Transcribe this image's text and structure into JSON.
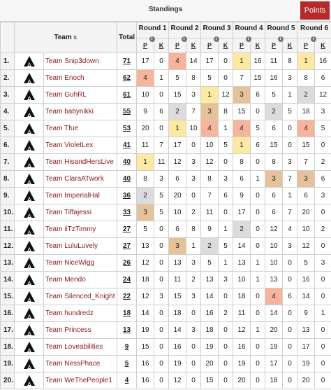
{
  "header": {
    "title": "Standings",
    "points_button": "Points"
  },
  "columns": {
    "team": "Team",
    "total": "Total",
    "p": "P",
    "k": "K"
  },
  "rounds": [
    "Round 1",
    "Round 2",
    "Round 3",
    "Round 4",
    "Round 5",
    "Round 6"
  ],
  "highlight_colors": {
    "gold": "#fde9a2",
    "orange": "#f6b49c",
    "tan": "#e6c29a",
    "gray": "#dcdcdc"
  },
  "rows": [
    {
      "rank": "1.",
      "team": "Team Snip3down",
      "total": "71",
      "cells": [
        "17",
        "0",
        "4",
        "14",
        "17",
        "0",
        "1",
        "16",
        "11",
        "8",
        "1",
        "16"
      ]
    },
    {
      "rank": "2.",
      "team": "Team Enoch",
      "total": "62",
      "cells": [
        "4",
        "1",
        "5",
        "8",
        "5",
        "0",
        "7",
        "15",
        "16",
        "3",
        "8",
        "6"
      ]
    },
    {
      "rank": "3.",
      "team": "Team GuhRL",
      "total": "61",
      "cells": [
        "10",
        "0",
        "15",
        "3",
        "1",
        "12",
        "3",
        "6",
        "5",
        "1",
        "2",
        "12"
      ]
    },
    {
      "rank": "4.",
      "team": "Team babynikki",
      "total": "55",
      "cells": [
        "9",
        "6",
        "2",
        "7",
        "3",
        "8",
        "15",
        "0",
        "2",
        "5",
        "18",
        "3"
      ]
    },
    {
      "rank": "5.",
      "team": "Team Tfue",
      "total": "53",
      "cells": [
        "20",
        "0",
        "1",
        "10",
        "4",
        "1",
        "4",
        "5",
        "6",
        "0",
        "4",
        "5"
      ]
    },
    {
      "rank": "6.",
      "team": "Team VioletLex",
      "total": "41",
      "cells": [
        "11",
        "7",
        "17",
        "0",
        "10",
        "5",
        "1",
        "6",
        "15",
        "0",
        "15",
        "0"
      ]
    },
    {
      "rank": "7.",
      "team": "Team HisandHersLive",
      "total": "40",
      "cells": [
        "1",
        "11",
        "12",
        "3",
        "12",
        "0",
        "8",
        "0",
        "8",
        "3",
        "7",
        "2"
      ]
    },
    {
      "rank": "8.",
      "team": "Team ClaraATwork",
      "total": "40",
      "cells": [
        "8",
        "3",
        "6",
        "3",
        "8",
        "3",
        "6",
        "1",
        "3",
        "7",
        "3",
        "6"
      ]
    },
    {
      "rank": "9.",
      "team": "Team ImperialHal",
      "total": "36",
      "cells": [
        "2",
        "5",
        "20",
        "0",
        "7",
        "6",
        "9",
        "0",
        "6",
        "1",
        "6",
        "3"
      ]
    },
    {
      "rank": "10.",
      "team": "Team Tiffajessi",
      "total": "33",
      "cells": [
        "3",
        "5",
        "10",
        "2",
        "11",
        "0",
        "17",
        "0",
        "6",
        "7",
        "20",
        "0"
      ]
    },
    {
      "rank": "11.",
      "team": "Team iiTzTimmy",
      "total": "27",
      "cells": [
        "5",
        "0",
        "6",
        "8",
        "9",
        "1",
        "2",
        "0",
        "12",
        "4",
        "10",
        "2"
      ]
    },
    {
      "rank": "12.",
      "team": "Team LuluLuvely",
      "total": "27",
      "cells": [
        "13",
        "0",
        "3",
        "1",
        "2",
        "5",
        "14",
        "0",
        "10",
        "3",
        "12",
        "0"
      ]
    },
    {
      "rank": "13.",
      "team": "Team NiceWigg",
      "total": "26",
      "cells": [
        "12",
        "0",
        "13",
        "3",
        "5",
        "1",
        "13",
        "1",
        "10",
        "0",
        "5",
        "3"
      ]
    },
    {
      "rank": "14.",
      "team": "Team Mendo",
      "total": "24",
      "cells": [
        "18",
        "0",
        "11",
        "2",
        "13",
        "3",
        "10",
        "1",
        "13",
        "0",
        "16",
        "0"
      ]
    },
    {
      "rank": "15.",
      "team": "Team Silenced_Knight",
      "total": "22",
      "cells": [
        "12",
        "3",
        "15",
        "3",
        "14",
        "0",
        "18",
        "0",
        "4",
        "6",
        "14",
        "0"
      ]
    },
    {
      "rank": "16.",
      "team": "Team hundredz",
      "total": "18",
      "cells": [
        "14",
        "0",
        "18",
        "0",
        "16",
        "2",
        "11",
        "0",
        "14",
        "0",
        "9",
        "1"
      ]
    },
    {
      "rank": "17.",
      "team": "Team Princess",
      "total": "13",
      "cells": [
        "19",
        "0",
        "14",
        "3",
        "18",
        "0",
        "12",
        "1",
        "20",
        "0",
        "13",
        "0"
      ]
    },
    {
      "rank": "18.",
      "team": "Team Loveabilities",
      "total": "9",
      "cells": [
        "15",
        "0",
        "16",
        "0",
        "19",
        "0",
        "16",
        "0",
        "19",
        "0",
        "17",
        "0"
      ]
    },
    {
      "rank": "19.",
      "team": "Team NessPhace",
      "total": "5",
      "cells": [
        "16",
        "0",
        "19",
        "0",
        "20",
        "0",
        "19",
        "0",
        "17",
        "0",
        "19",
        "0"
      ]
    },
    {
      "rank": "20.",
      "team": "Team WeThePeople1",
      "total": "4",
      "cells": [
        "16",
        "0",
        "12",
        "0",
        "15",
        "0",
        "20",
        "0",
        "18",
        "0",
        "20",
        "0"
      ]
    }
  ]
}
